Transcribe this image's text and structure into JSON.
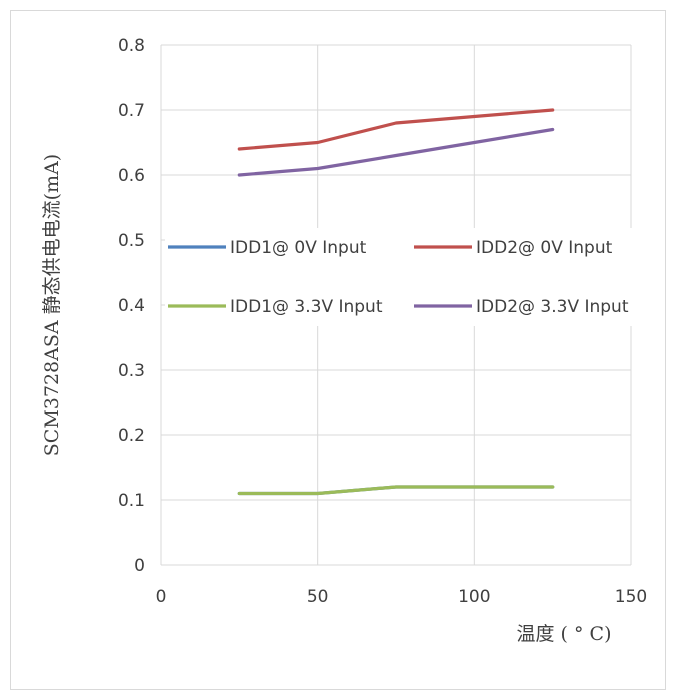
{
  "chart_data": {
    "type": "line",
    "title": "",
    "xlabel": "温度 ( ° C)",
    "ylabel": "SCM3728ASA 静态供电电流(mA)",
    "xlim": [
      0,
      150
    ],
    "ylim": [
      0,
      0.8
    ],
    "x_ticks": [
      "0",
      "50",
      "100",
      "150"
    ],
    "y_ticks": [
      "0",
      "0.1",
      "0.2",
      "0.3",
      "0.4",
      "0.5",
      "0.6",
      "0.7",
      "0.8"
    ],
    "grid": true,
    "legend_position": "center",
    "series": [
      {
        "name": "IDD1@ 0V Input",
        "color": "#4f81bd",
        "x": [
          25,
          50,
          75,
          100,
          125
        ],
        "y": [
          0.11,
          0.11,
          0.12,
          0.12,
          0.12
        ]
      },
      {
        "name": "IDD2@ 0V Input",
        "color": "#c0504d",
        "x": [
          25,
          50,
          75,
          100,
          125
        ],
        "y": [
          0.64,
          0.65,
          0.68,
          0.69,
          0.7
        ]
      },
      {
        "name": "IDD1@ 3.3V Input",
        "color": "#9bbb59",
        "x": [
          25,
          50,
          75,
          100,
          125
        ],
        "y": [
          0.11,
          0.11,
          0.12,
          0.12,
          0.12
        ]
      },
      {
        "name": "IDD2@ 3.3V Input",
        "color": "#8064a2",
        "x": [
          25,
          50,
          75,
          100,
          125
        ],
        "y": [
          0.6,
          0.61,
          0.63,
          0.65,
          0.67
        ]
      }
    ]
  }
}
